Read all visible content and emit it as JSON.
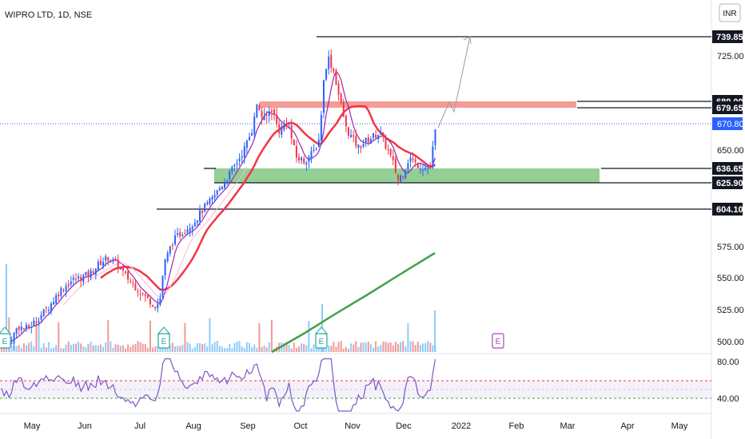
{
  "header": {
    "title": "WIPRO LTD, 1D, NSE"
  },
  "currency_button": {
    "label": "INR"
  },
  "chart_data": {
    "type": "candlestick",
    "title": "WIPRO LTD, 1D, NSE",
    "price_axis": {
      "ticks": [
        "739.85",
        "725.00",
        "689.00",
        "679.65",
        "670.80",
        "650.00",
        "636.65",
        "625.90",
        "604.10",
        "575.00",
        "550.00",
        "525.00",
        "500.00"
      ],
      "range": [
        495,
        750
      ]
    },
    "time_axis": {
      "ticks": [
        "May",
        "Jun",
        "Jul",
        "Aug",
        "Sep",
        "Oct",
        "Nov",
        "Dec",
        "2022",
        "Feb",
        "Mar",
        "Apr",
        "May"
      ]
    },
    "current_price": 670.8,
    "levels": [
      {
        "name": "resistance-target",
        "value": 739.85,
        "label": "739.85"
      },
      {
        "name": "supply-top",
        "value": 689.0,
        "label": "689.00"
      },
      {
        "name": "supply-bottom",
        "value": 679.65,
        "label": "679.65"
      },
      {
        "name": "demand-top",
        "value": 636.65,
        "label": "636.65"
      },
      {
        "name": "demand-bottom",
        "value": 625.9,
        "label": "625.90"
      },
      {
        "name": "support",
        "value": 604.1,
        "label": "604.10"
      }
    ],
    "zones": [
      {
        "name": "supply-zone",
        "from": 679.65,
        "to": 689.0,
        "color": "#f28b82"
      },
      {
        "name": "demand-zone",
        "from": 625.9,
        "to": 636.65,
        "color": "#81c784"
      }
    ],
    "earnings_markers": [
      "E",
      "E",
      "E",
      "E"
    ],
    "rsi": {
      "upper": 60,
      "lower": 40,
      "ticks": [
        "80.00",
        "40.00"
      ]
    },
    "colors": {
      "up": "#2962ff",
      "down": "#f23645",
      "ma_fast": "#9c27b0",
      "ma_mid": "#f23645",
      "ma_slow": "#43a047",
      "current": "#2962ff"
    }
  }
}
